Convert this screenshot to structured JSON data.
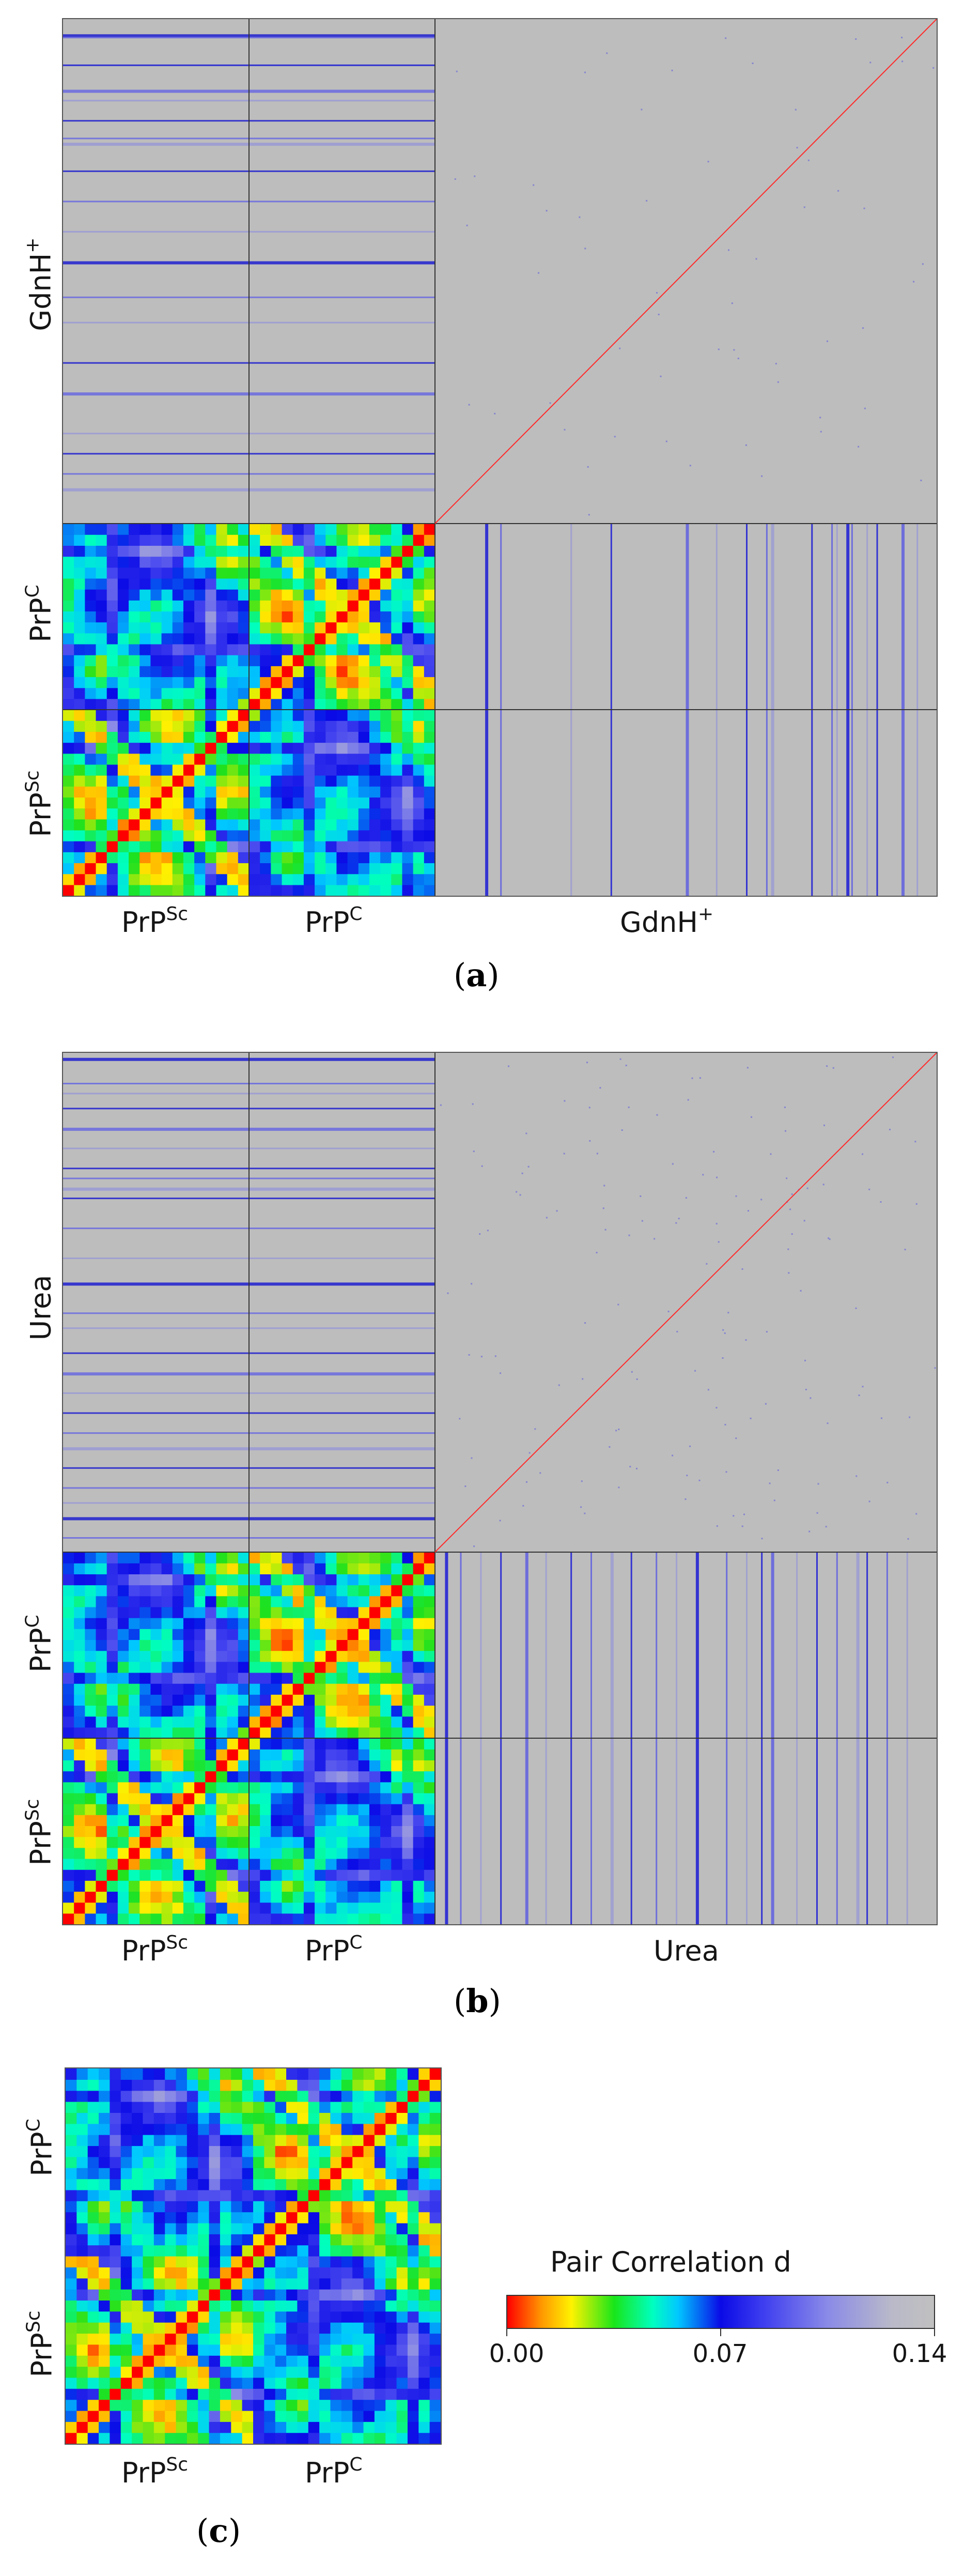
{
  "panels": [
    {
      "id": "a",
      "label": "a",
      "solvent": "GdnH",
      "solvent_sup": "+",
      "x_labels": [
        {
          "base": "PrP",
          "sup": "Sc"
        },
        {
          "base": "PrP",
          "sup": "C"
        },
        {
          "base": "GdnH",
          "sup": "+"
        }
      ],
      "y_labels": [
        {
          "base": "GdnH",
          "sup": "+"
        },
        {
          "base": "PrP",
          "sup": "C"
        },
        {
          "base": "PrP",
          "sup": "Sc"
        }
      ]
    },
    {
      "id": "b",
      "label": "b",
      "solvent": "Urea",
      "solvent_sup": "",
      "x_labels": [
        {
          "base": "PrP",
          "sup": "Sc"
        },
        {
          "base": "PrP",
          "sup": "C"
        },
        {
          "base": "Urea",
          "sup": ""
        }
      ],
      "y_labels": [
        {
          "base": "Urea",
          "sup": ""
        },
        {
          "base": "PrP",
          "sup": "C"
        },
        {
          "base": "PrP",
          "sup": "Sc"
        }
      ]
    },
    {
      "id": "c",
      "label": "c",
      "x_labels": [
        {
          "base": "PrP",
          "sup": "Sc"
        },
        {
          "base": "PrP",
          "sup": "C"
        }
      ],
      "y_labels": [
        {
          "base": "PrP",
          "sup": "C"
        },
        {
          "base": "PrP",
          "sup": "Sc"
        }
      ]
    }
  ],
  "chart_data": [
    {
      "type": "heatmap",
      "title": "(a)",
      "blocks": [
        "PrPSc",
        "PrPC",
        "GdnH+"
      ],
      "xlabel_groups": [
        "PrPSc",
        "PrPC",
        "GdnH+"
      ],
      "ylabel_groups": [
        "GdnH+",
        "PrPC",
        "PrPSc"
      ],
      "value_range": [
        0.0,
        0.14
      ],
      "diagonal": 0.0
    },
    {
      "type": "heatmap",
      "title": "(b)",
      "blocks": [
        "PrPSc",
        "PrPC",
        "Urea"
      ],
      "xlabel_groups": [
        "PrPSc",
        "PrPC",
        "Urea"
      ],
      "ylabel_groups": [
        "Urea",
        "PrPC",
        "PrPSc"
      ],
      "value_range": [
        0.0,
        0.14
      ],
      "diagonal": 0.0
    },
    {
      "type": "heatmap",
      "title": "(c)",
      "blocks": [
        "PrPSc",
        "PrPC"
      ],
      "xlabel_groups": [
        "PrPSc",
        "PrPC"
      ],
      "ylabel_groups": [
        "PrPC",
        "PrPSc"
      ],
      "value_range": [
        0.0,
        0.14
      ],
      "diagonal": 0.0
    }
  ],
  "colorbar": {
    "title": "Pair Correlation  d",
    "min": 0.0,
    "max": 0.14,
    "ticks": [
      "0.00",
      "0.07",
      "0.14"
    ],
    "tick_values": [
      0.0,
      0.07,
      0.14
    ],
    "colors": [
      "#ff0000",
      "#ffa500",
      "#ffff00",
      "#00e000",
      "#00ffd0",
      "#0000e0",
      "#8080e0",
      "#c0c0c0"
    ]
  }
}
